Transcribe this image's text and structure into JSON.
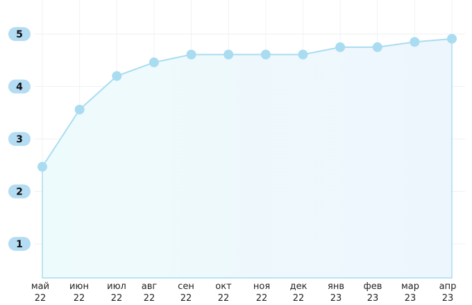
{
  "chart_data": {
    "type": "area",
    "categories": [
      "май 22",
      "июн 22",
      "июл 22",
      "авг 22",
      "сен 22",
      "окт 22",
      "ноя 22",
      "дек 22",
      "янв 23",
      "фев 23",
      "мар 23",
      "апр 23"
    ],
    "series": [
      {
        "color": "#a9dcf1",
        "values": [
          2.47,
          3.56,
          4.2,
          4.46,
          4.61,
          4.61,
          4.61,
          4.61,
          4.75,
          4.75,
          4.85,
          4.91
        ]
      }
    ],
    "ylim": [
      0.35,
      5.65
    ],
    "yticks": [
      1,
      2,
      3,
      4,
      5
    ],
    "grid": true
  }
}
